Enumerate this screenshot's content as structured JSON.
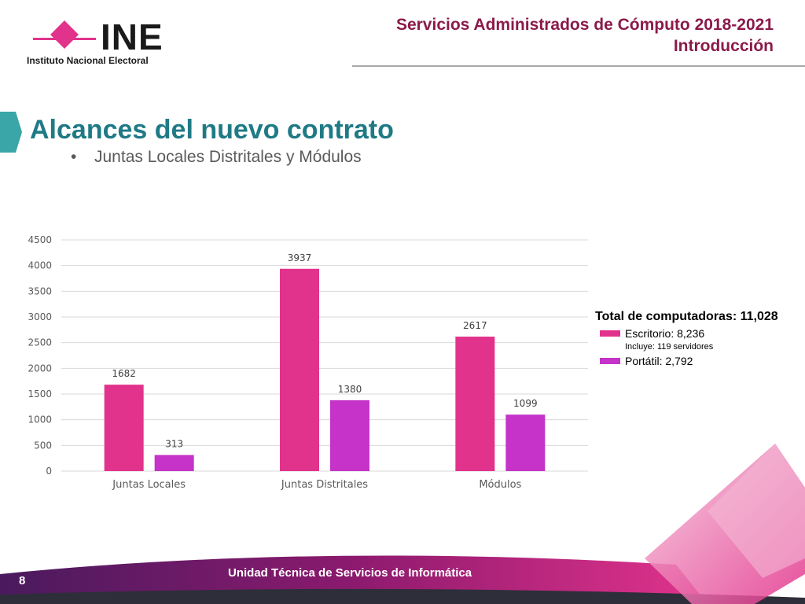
{
  "logo": {
    "name": "INE",
    "subtitle": "Instituto Nacional Electoral"
  },
  "header": {
    "line1": "Servicios Administrados de Cómputo 2018-2021",
    "line2": "Introducción"
  },
  "slide": {
    "title": "Alcances del nuevo contrato",
    "bullet": "Juntas Locales Distritales y Módulos"
  },
  "colors": {
    "escritorio": "#e2338c",
    "portatil": "#c533c8",
    "title_teal": "#1f7a86",
    "header_maroon": "#8b1a4a"
  },
  "chart_data": {
    "type": "bar",
    "categories": [
      "Juntas Locales",
      "Juntas Distritales",
      "Módulos"
    ],
    "series": [
      {
        "values": [
          1682,
          3937,
          2617
        ]
      },
      {
        "values": [
          313,
          1380,
          1099
        ]
      }
    ],
    "ylim": [
      0,
      4500
    ],
    "yticks": [
      0,
      500,
      1000,
      1500,
      2000,
      2500,
      3000,
      3500,
      4000,
      4500
    ],
    "grid": true
  },
  "legend": {
    "title": "Total de computadoras: 11,028",
    "items": [
      {
        "label": "Escritorio: 8,236",
        "note": "Incluye: 119 servidores"
      },
      {
        "label": "Portátil: 2,792"
      }
    ]
  },
  "footer": {
    "text": "Unidad Técnica de Servicios de Informática",
    "page": "8"
  }
}
